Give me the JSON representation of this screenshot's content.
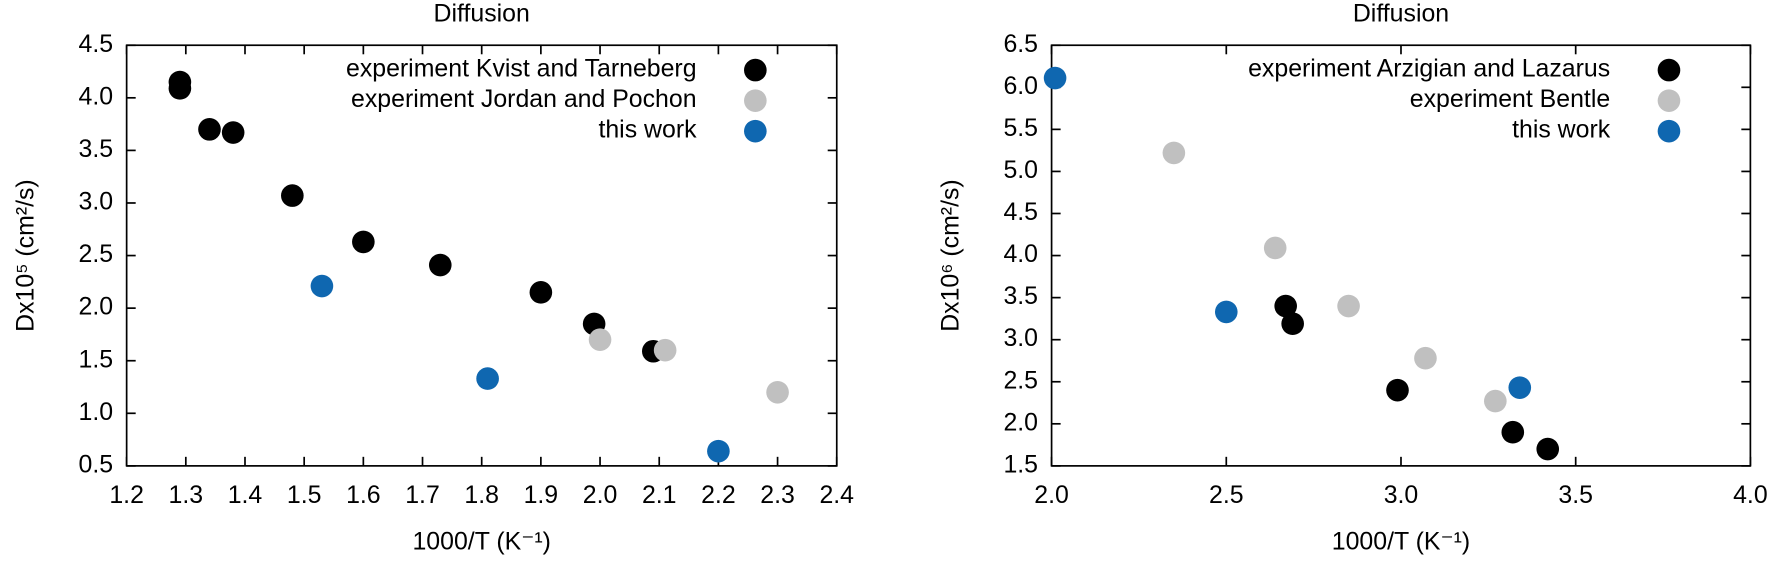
{
  "chart_data": [
    {
      "type": "scatter",
      "title": "Diffusion",
      "xlabel": "1000/T (K⁻¹)",
      "ylabel": "Dx10⁵ (cm²/s)",
      "xlim": [
        1.2,
        2.4
      ],
      "ylim": [
        0.5,
        4.5
      ],
      "xticks": [
        1.2,
        1.3,
        1.4,
        1.5,
        1.6,
        1.7,
        1.8,
        1.9,
        {
          "value": 2.0,
          "label": "2.0"
        },
        2.1,
        2.2,
        2.3,
        2.4
      ],
      "yticks": [
        0.5,
        {
          "value": 1.0,
          "label": "1.0"
        },
        1.5,
        {
          "value": 2.0,
          "label": "2.0"
        },
        2.5,
        {
          "value": 3.0,
          "label": "3.0"
        },
        3.5,
        {
          "value": 4.0,
          "label": "4.0"
        },
        4.5
      ],
      "legend": "upper right",
      "series": [
        {
          "name": "experiment Kvist and Tarneberg",
          "color": "#000000",
          "x": [
            1.29,
            1.29,
            1.34,
            1.38,
            1.48,
            1.6,
            1.73,
            1.9,
            1.99,
            2.09
          ],
          "values": [
            4.15,
            4.09,
            3.7,
            3.67,
            3.07,
            2.63,
            2.41,
            2.15,
            1.85,
            1.59
          ]
        },
        {
          "name": "experiment Jordan and Pochon",
          "color": "#c0c0c0",
          "x": [
            2.0,
            2.11,
            2.3
          ],
          "values": [
            1.7,
            1.6,
            1.2
          ]
        },
        {
          "name": "this work",
          "color": "#0f67b0",
          "x": [
            1.53,
            1.81,
            2.2
          ],
          "values": [
            2.21,
            1.33,
            0.64
          ]
        }
      ]
    },
    {
      "type": "scatter",
      "title": "Diffusion",
      "xlabel": "1000/T (K⁻¹)",
      "ylabel": "Dx10⁶ (cm²/s)",
      "xlim": [
        2.0,
        4.0
      ],
      "ylim": [
        1.5,
        6.5
      ],
      "xticks": [
        {
          "value": 2.0,
          "label": "2.0"
        },
        2.5,
        {
          "value": 3.0,
          "label": "3.0"
        },
        3.5,
        {
          "value": 4.0,
          "label": "4.0"
        }
      ],
      "yticks": [
        1.5,
        {
          "value": 2.0,
          "label": "2.0"
        },
        2.5,
        {
          "value": 3.0,
          "label": "3.0"
        },
        3.5,
        {
          "value": 4.0,
          "label": "4.0"
        },
        4.5,
        {
          "value": 5.0,
          "label": "5.0"
        },
        5.5,
        {
          "value": 6.0,
          "label": "6.0"
        },
        6.5
      ],
      "legend": "upper right",
      "series": [
        {
          "name": "experiment Arzigian and Lazarus",
          "color": "#000000",
          "x": [
            2.67,
            2.69,
            2.99,
            3.32,
            3.42
          ],
          "values": [
            3.4,
            3.19,
            2.4,
            1.9,
            1.7
          ]
        },
        {
          "name": "experiment Bentle",
          "color": "#c0c0c0",
          "x": [
            2.35,
            2.64,
            2.85,
            3.07,
            3.27
          ],
          "values": [
            5.22,
            4.09,
            3.4,
            2.78,
            2.27
          ]
        },
        {
          "name": "this work",
          "color": "#0f67b0",
          "x": [
            2.01,
            2.5,
            3.34
          ],
          "values": [
            6.11,
            3.33,
            2.43
          ]
        }
      ]
    }
  ]
}
